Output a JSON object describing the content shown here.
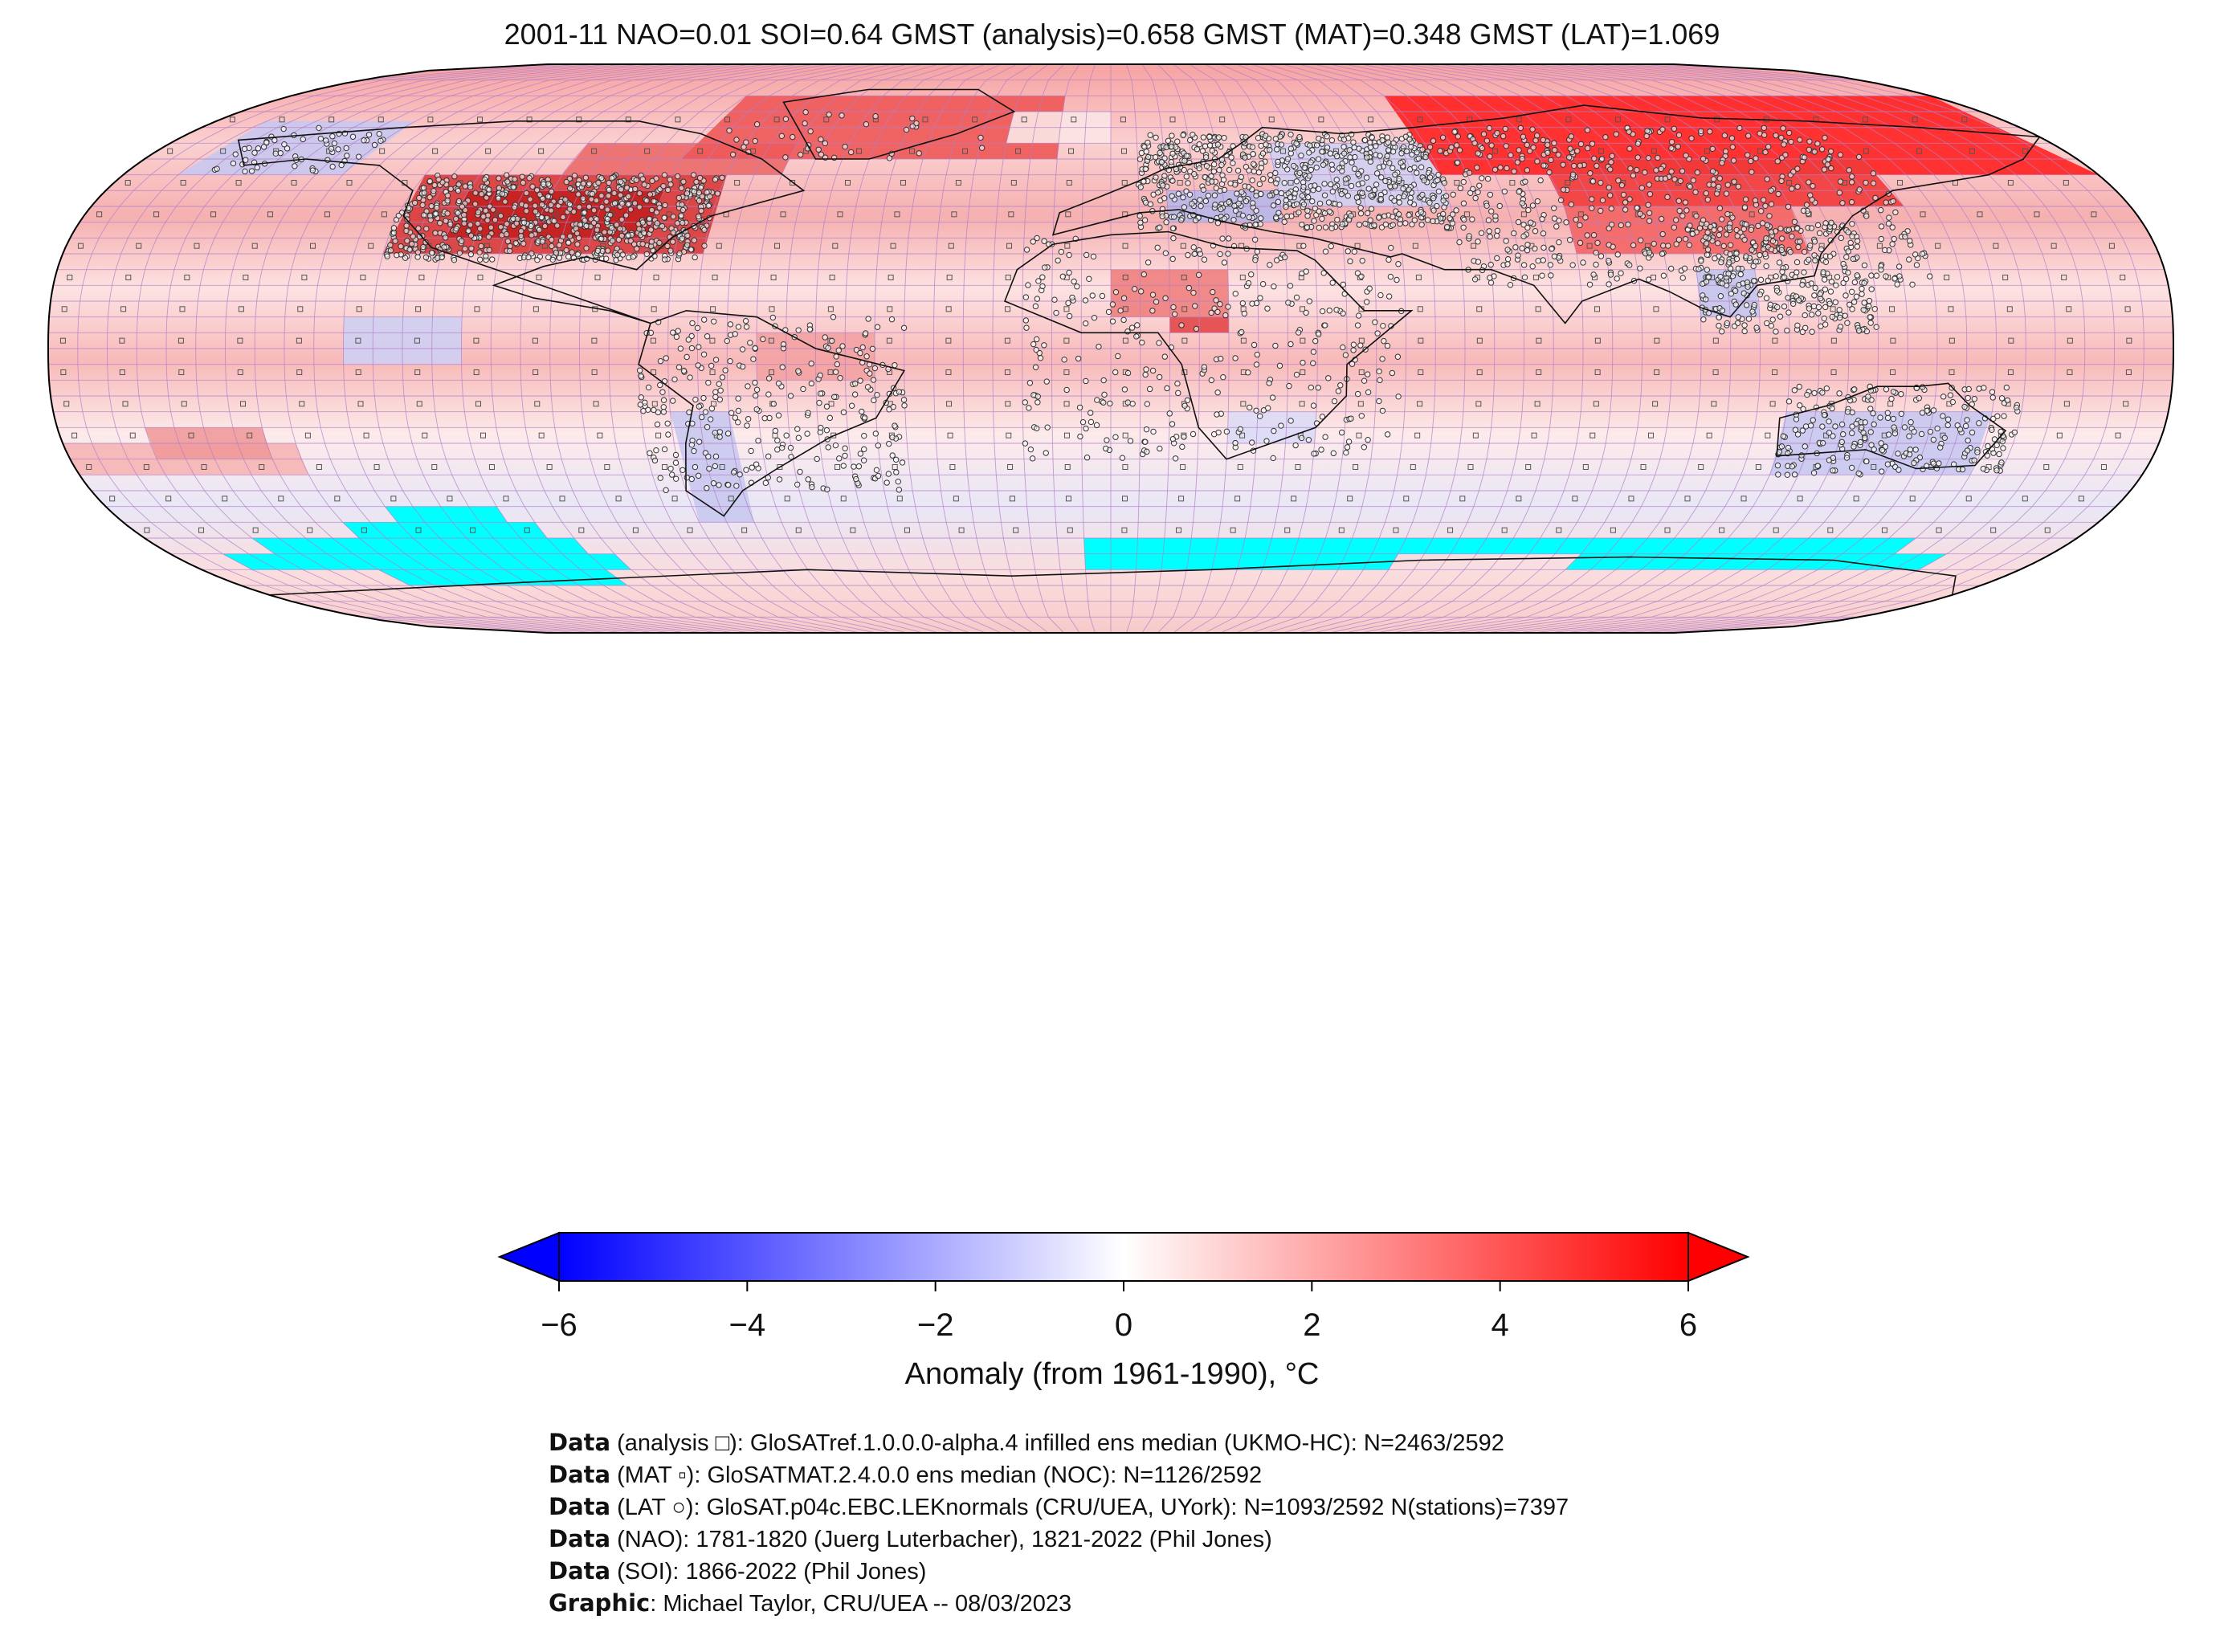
{
  "title": "2001-11 NAO=0.01 SOI=0.64 GMST (analysis)=0.658 GMST (MAT)=0.348 GMST (LAT)=1.069",
  "colorbar": {
    "label": "Anomaly (from 1961-1990), °C",
    "ticks": [
      "−6",
      "−4",
      "−2",
      "0",
      "2",
      "4",
      "6"
    ],
    "tick_values": [
      -6,
      -4,
      -2,
      0,
      2,
      4,
      6
    ],
    "range": [
      -6,
      6
    ],
    "colormap": [
      "#0000ff",
      "#ffffff",
      "#ff0000"
    ],
    "extend": "both"
  },
  "map": {
    "projection": "Robinson",
    "missing_color": "#00ffff",
    "grid_color": "#b07fc8",
    "land_color": "#666666",
    "colorbar_placement": "bottom"
  },
  "credits": [
    {
      "bold": "Data",
      "text": " (analysis □): GloSATref.1.0.0.0-alpha.4 infilled ens median (UKMO-HC): N=2463/2592"
    },
    {
      "bold": "Data",
      "text": " (MAT ▫): GloSATMAT.2.4.0.0 ens median (NOC): N=1126/2592"
    },
    {
      "bold": "Data",
      "text": " (LAT ○): GloSAT.p04c.EBC.LEKnormals (CRU/UEA, UYork): N=1093/2592 N(stations)=7397"
    },
    {
      "bold": "Data",
      "text": " (NAO): 1781-1820 (Juerg Luterbacher), 1821-2022 (Phil Jones)"
    },
    {
      "bold": "Data",
      "text": " (SOI): 1866-2022 (Phil Jones)"
    },
    {
      "bold": "Graphic",
      "text": ": Michael Taylor, CRU/UEA -- 08/03/2023"
    }
  ]
}
